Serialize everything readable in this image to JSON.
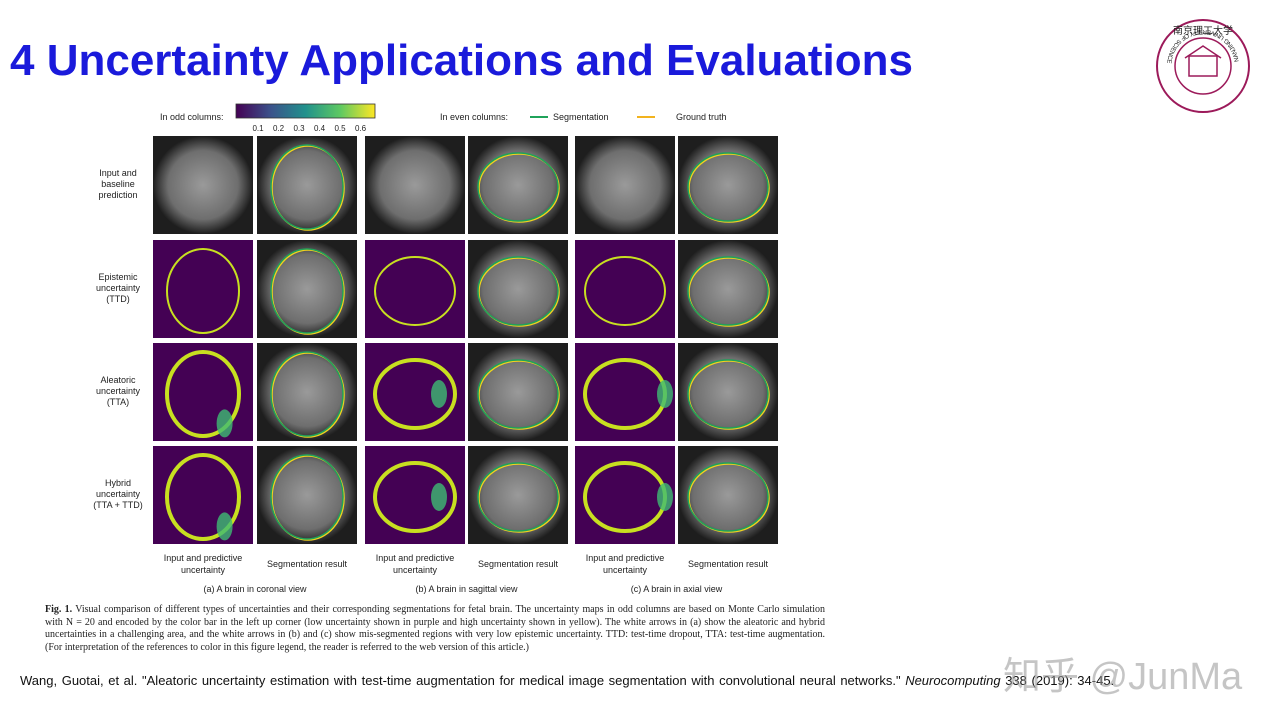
{
  "header": {
    "title": "4 Uncertainty Applications and Evaluations",
    "logo_text": "NANJING UNIVERSITY OF SCIENCE & TECHNOLOGY",
    "logo_chars": "南京理工大学"
  },
  "figure": {
    "colorbar_label": "In odd columns:",
    "colorbar_ticks": [
      "0.1",
      "0.2",
      "0.3",
      "0.4",
      "0.5",
      "0.6"
    ],
    "even_label": "In even columns:",
    "legend": [
      "Segmentation",
      "Ground truth"
    ],
    "row_labels": [
      [
        "Input and",
        "baseline",
        "prediction"
      ],
      [
        "Epistemic",
        "uncertainty",
        "(TTD)"
      ],
      [
        "Aleatoric",
        "uncertainty",
        "(TTA)"
      ],
      [
        "Hybrid",
        "uncertainty",
        "(TTA + TTD)"
      ]
    ],
    "column_labels": [
      [
        "Input and predictive",
        "uncertainty"
      ],
      [
        "Segmentation result"
      ],
      [
        "Input and predictive",
        "uncertainty"
      ],
      [
        "Segmentation result"
      ],
      [
        "Input and predictive",
        "uncertainty"
      ],
      [
        "Segmentation result"
      ]
    ],
    "subcaptions": [
      "(a) A brain in coronal view",
      "(b) A brain in sagittal view",
      "(c) A brain in axial view"
    ]
  },
  "caption": {
    "label": "Fig. 1.",
    "text": "Visual comparison of different types of uncertainties and their corresponding segmentations for fetal brain. The uncertainty maps in odd columns are based on Monte Carlo simulation with N = 20 and encoded by the color bar in the left up corner (low uncertainty shown in purple and high uncertainty shown in yellow). The white arrows in (a) show the aleatoric and hybrid uncertainties in a challenging area, and the white arrows in (b) and (c) show mis-segmented regions with very low epistemic uncertainty. TTD: test-time dropout, TTA: test-time augmentation. (For interpretation of the references to color in this figure legend, the reader is referred to the web version of this article.)"
  },
  "citation": {
    "text": "Wang, Guotai, et al. \"Aleatoric uncertainty estimation with test-time augmentation for medical image segmentation with convolutional neural networks.\"",
    "journal": "Neurocomputing",
    "tail": "338 (2019): 34-45."
  },
  "watermark": "知乎 @JunMa"
}
